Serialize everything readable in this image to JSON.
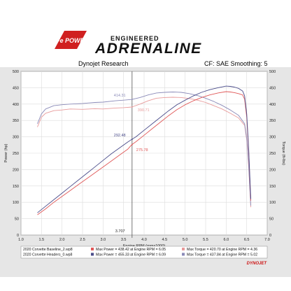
{
  "header": {
    "brand_badge": "aFe POWER",
    "brand_top": "ENGINEERED",
    "brand_main": "ADRENALINE",
    "left_caption": "Dynojet Research",
    "right_caption": "CF: SAE Smoothing: 5"
  },
  "colors": {
    "baseline_power": "#e05858",
    "baseline_torque": "#e89a9a",
    "headers_power": "#4a4c8a",
    "headers_torque": "#8a8ab8",
    "cursor": "#555555",
    "dynojet_red": "#cc1111"
  },
  "chart_data": {
    "type": "line",
    "xlabel": "Engine RPM (rpmx1000)",
    "ylabel_left": "Power (hp)",
    "ylabel_right": "Torque (ft-lbs)",
    "xlim": [
      1.0,
      7.0
    ],
    "ylim": [
      0,
      500
    ],
    "x_ticks": [
      "1.0",
      "1.5",
      "2.0",
      "2.5",
      "3.0",
      "3.5",
      "4.0",
      "4.5",
      "5.0",
      "5.5",
      "6.0",
      "6.5",
      "7.0"
    ],
    "y_ticks": [
      "0",
      "50",
      "100",
      "150",
      "200",
      "250",
      "300",
      "350",
      "400",
      "450",
      "500"
    ],
    "grid": true,
    "cursor": {
      "x": 3.707,
      "label": "3.707"
    },
    "annotations": [
      {
        "text": "414.31",
        "x": 3.65,
        "y": 414.31,
        "series": "headers_torque"
      },
      {
        "text": "390.71",
        "x": 3.65,
        "y": 390.71,
        "series": "baseline_torque"
      },
      {
        "text": "292.48",
        "x": 3.65,
        "y": 292.48,
        "series": "headers_power"
      },
      {
        "text": "275.78",
        "x": 3.75,
        "y": 275.78,
        "series": "baseline_power"
      }
    ],
    "series": [
      {
        "name": "2020 Corvette Baseline_2.wp8 Power",
        "key": "baseline_power",
        "x": [
          1.4,
          1.6,
          1.8,
          2.0,
          2.2,
          2.4,
          2.6,
          2.8,
          3.0,
          3.2,
          3.4,
          3.6,
          3.7,
          3.8,
          4.0,
          4.2,
          4.4,
          4.6,
          4.8,
          5.0,
          5.2,
          5.4,
          5.6,
          5.8,
          6.0,
          6.1,
          6.2,
          6.3,
          6.4,
          6.45,
          6.5,
          6.55,
          6.6
        ],
        "y": [
          62,
          80,
          100,
          118,
          136,
          154,
          172,
          190,
          208,
          226,
          244,
          262,
          276,
          285,
          305,
          325,
          345,
          365,
          383,
          398,
          410,
          420,
          428,
          434,
          438,
          437,
          435,
          432,
          428,
          415,
          360,
          250,
          105
        ]
      },
      {
        "name": "2020 Corvette Baseline_2.wp8 Torque",
        "key": "baseline_torque",
        "x": [
          1.4,
          1.5,
          1.6,
          1.8,
          2.0,
          2.2,
          2.5,
          2.8,
          3.0,
          3.3,
          3.5,
          3.7,
          3.9,
          4.1,
          4.3,
          4.5,
          4.7,
          4.9,
          5.1,
          5.3,
          5.5,
          5.7,
          5.9,
          6.1,
          6.3,
          6.45,
          6.5,
          6.55,
          6.6
        ],
        "y": [
          330,
          360,
          372,
          380,
          382,
          385,
          384,
          386,
          385,
          388,
          389,
          391,
          400,
          410,
          418,
          420,
          421,
          420,
          417,
          412,
          405,
          395,
          385,
          372,
          358,
          335,
          290,
          205,
          85
        ]
      },
      {
        "name": "2020 Corvette Headers_0.wp8 Power",
        "key": "headers_power",
        "x": [
          1.4,
          1.6,
          1.8,
          2.0,
          2.2,
          2.4,
          2.6,
          2.8,
          3.0,
          3.2,
          3.4,
          3.6,
          3.7,
          3.8,
          4.0,
          4.2,
          4.4,
          4.6,
          4.8,
          5.0,
          5.2,
          5.4,
          5.6,
          5.8,
          6.0,
          6.1,
          6.2,
          6.3,
          6.4,
          6.45,
          6.5,
          6.55,
          6.6
        ],
        "y": [
          68,
          88,
          108,
          128,
          148,
          168,
          188,
          208,
          228,
          248,
          266,
          284,
          292,
          300,
          320,
          340,
          360,
          380,
          398,
          412,
          425,
          436,
          444,
          450,
          455,
          454,
          452,
          448,
          440,
          425,
          370,
          260,
          110
        ]
      },
      {
        "name": "2020 Corvette Headers_0.wp8 Torque",
        "key": "headers_torque",
        "x": [
          1.4,
          1.5,
          1.6,
          1.8,
          2.0,
          2.2,
          2.5,
          2.8,
          3.0,
          3.3,
          3.5,
          3.7,
          3.9,
          4.1,
          4.3,
          4.5,
          4.7,
          4.9,
          5.1,
          5.3,
          5.5,
          5.7,
          5.9,
          6.1,
          6.3,
          6.45,
          6.5,
          6.55,
          6.6
        ],
        "y": [
          340,
          370,
          385,
          395,
          398,
          400,
          402,
          405,
          406,
          410,
          412,
          414,
          420,
          428,
          434,
          436,
          437,
          436,
          432,
          426,
          418,
          408,
          396,
          382,
          366,
          340,
          295,
          210,
          90
        ]
      }
    ],
    "legend": [
      {
        "file": "2020 Corvette Baseline_2.wp8",
        "power": "Max Power = 438.42 at Engine RPM = 6.05",
        "torque": "Max Torque = 420.70 at Engine RPM = 4.36",
        "color_power": "#e05858",
        "color_torque": "#e89a9a"
      },
      {
        "file": "2020 Corvette Headers_0.wp8",
        "power": "Max Power = 455.33 at Engine RPM = 6.09",
        "torque": "Max Torque = 437.84 at Engine RPM = 5.02",
        "color_power": "#4a4c8a",
        "color_torque": "#8a8ab8"
      }
    ],
    "legend_placement": "bottom",
    "dynojet_mark": "DYNOJET"
  }
}
